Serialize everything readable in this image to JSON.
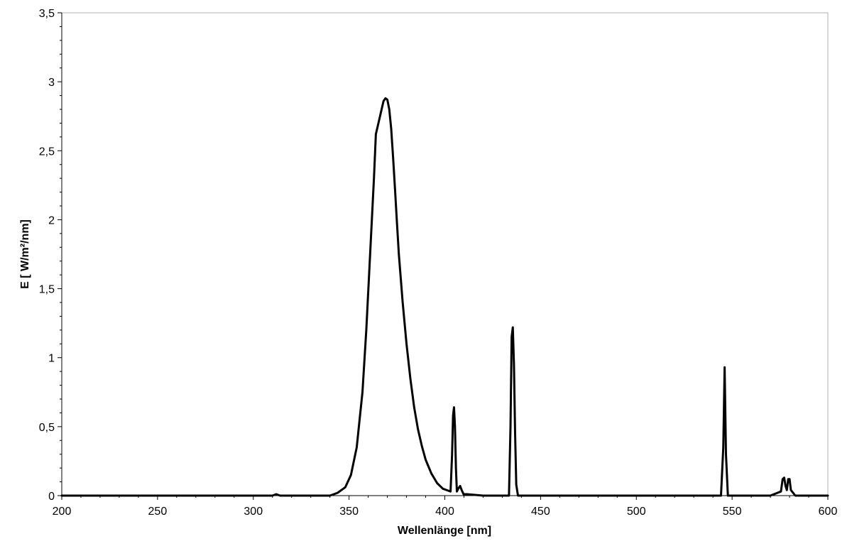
{
  "chart_data": {
    "type": "line",
    "title": "",
    "xlabel": "Wellenlänge [nm]",
    "ylabel": "E [ W/m²/nm]",
    "xlim": [
      200,
      600
    ],
    "ylim": [
      0,
      3.5
    ],
    "x_ticks": [
      {
        "value": 200,
        "label": "200"
      },
      {
        "value": 250,
        "label": "250"
      },
      {
        "value": 300,
        "label": "300"
      },
      {
        "value": 350,
        "label": "350"
      },
      {
        "value": 400,
        "label": "400"
      },
      {
        "value": 450,
        "label": "450"
      },
      {
        "value": 500,
        "label": "500"
      },
      {
        "value": 550,
        "label": "550"
      },
      {
        "value": 600,
        "label": "600"
      }
    ],
    "y_ticks": [
      {
        "value": 0,
        "label": "0"
      },
      {
        "value": 0.5,
        "label": "0,5"
      },
      {
        "value": 1,
        "label": "1"
      },
      {
        "value": 1.5,
        "label": "1,5"
      },
      {
        "value": 2,
        "label": "2"
      },
      {
        "value": 2.5,
        "label": "2,5"
      },
      {
        "value": 3,
        "label": "3"
      },
      {
        "value": 3.5,
        "label": "3,5"
      }
    ],
    "grid": false,
    "legend": "none",
    "series": [
      {
        "color": "#000000",
        "x": [
          200,
          310,
          312,
          314,
          340,
          344,
          348,
          351,
          354,
          357,
          359,
          361,
          363,
          364,
          365,
          366,
          367,
          368,
          369,
          370,
          371,
          372,
          373,
          374,
          375,
          376,
          378,
          380,
          382,
          384,
          386,
          388,
          390,
          393,
          396,
          399,
          401,
          403,
          403.8,
          404.3,
          404.8,
          405.3,
          405.8,
          406.3,
          407,
          408,
          408.8,
          409.8,
          412,
          420,
          433.5,
          434.3,
          434.9,
          435.5,
          436.1,
          436.7,
          437.3,
          438.2,
          440,
          500,
          544.2,
          545.4,
          546.1,
          546.8,
          547.8,
          549.5,
          570,
          575.5,
          576.4,
          577.2,
          577.9,
          578.6,
          579.3,
          580,
          580.7,
          583,
          600
        ],
        "y": [
          0,
          0,
          0.01,
          0,
          0,
          0.02,
          0.06,
          0.15,
          0.35,
          0.75,
          1.2,
          1.75,
          2.3,
          2.62,
          2.68,
          2.74,
          2.8,
          2.86,
          2.88,
          2.87,
          2.8,
          2.66,
          2.45,
          2.22,
          1.98,
          1.75,
          1.4,
          1.1,
          0.85,
          0.64,
          0.48,
          0.36,
          0.26,
          0.16,
          0.09,
          0.05,
          0.04,
          0.03,
          0.3,
          0.58,
          0.64,
          0.5,
          0.2,
          0.03,
          0.05,
          0.07,
          0.04,
          0.01,
          0.01,
          0,
          0,
          0.5,
          1.15,
          1.22,
          0.95,
          0.45,
          0.08,
          0,
          0,
          0,
          0,
          0.35,
          0.93,
          0.3,
          0,
          0,
          0,
          0.03,
          0.12,
          0.13,
          0.07,
          0.04,
          0.12,
          0.12,
          0.04,
          0,
          0
        ]
      }
    ]
  }
}
